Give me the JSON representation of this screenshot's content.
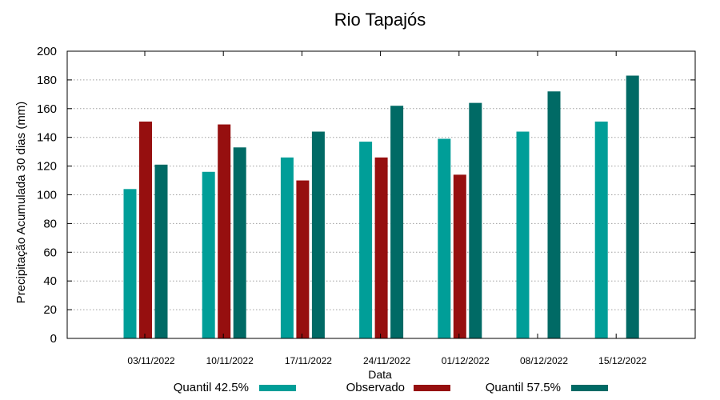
{
  "chart_data": {
    "type": "bar",
    "title": "Rio Tapajós",
    "xlabel": "Data",
    "ylabel": "Precipitação Acumulada 30 dias (mm)",
    "ylim": [
      0,
      200
    ],
    "yticks": [
      0,
      20,
      40,
      60,
      80,
      100,
      120,
      140,
      160,
      180,
      200
    ],
    "grid": true,
    "legend_position": "bottom",
    "categories": [
      "03/11/2022",
      "10/11/2022",
      "17/11/2022",
      "24/11/2022",
      "01/12/2022",
      "08/12/2022",
      "15/12/2022"
    ],
    "series": [
      {
        "name": "Quantil 42.5%",
        "color": "#009e98",
        "values": [
          104,
          116,
          126,
          137,
          139,
          144,
          151
        ]
      },
      {
        "name": "Observado",
        "color": "#960f0f",
        "values": [
          151,
          149,
          110,
          126,
          114,
          null,
          null
        ]
      },
      {
        "name": "Quantil 57.5%",
        "color": "#006a65",
        "values": [
          121,
          133,
          144,
          162,
          164,
          172,
          183
        ]
      }
    ]
  }
}
